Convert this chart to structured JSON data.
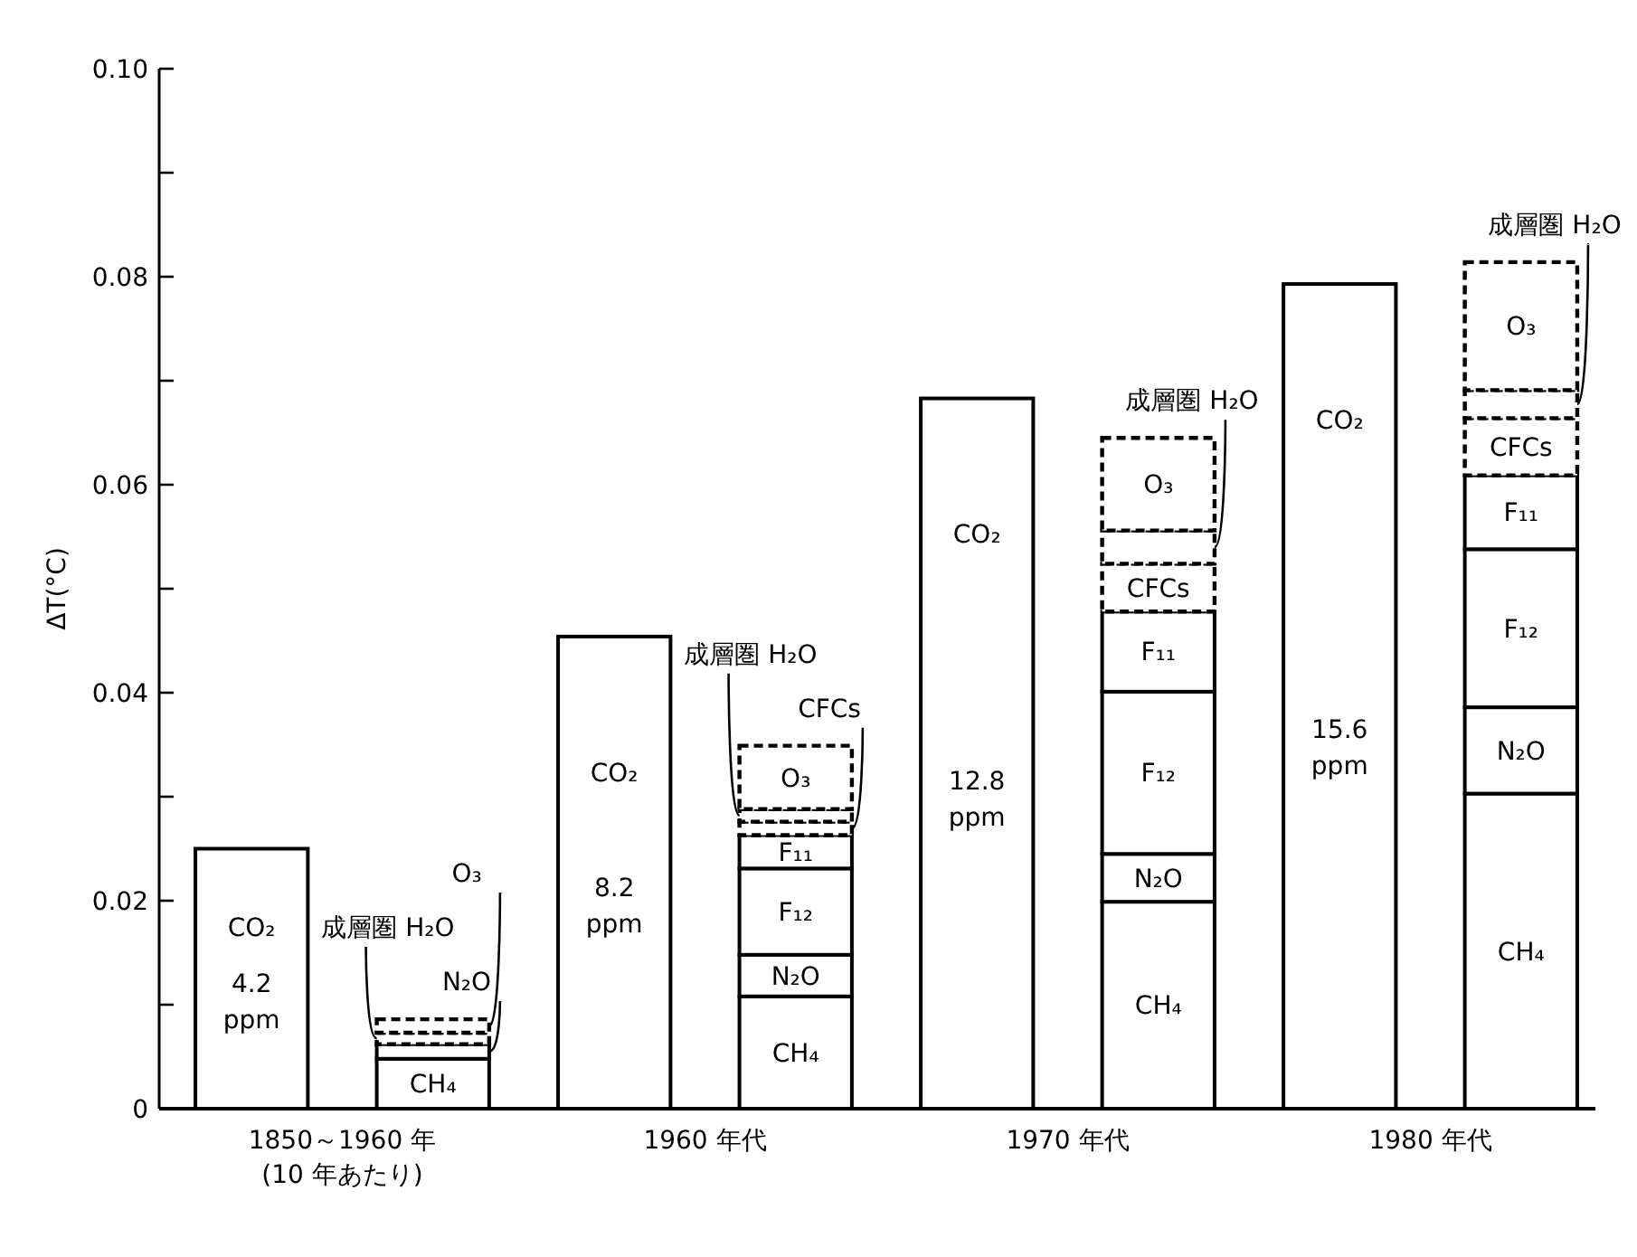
{
  "chart_data": {
    "type": "bar",
    "stacked": true,
    "ylabel": "ΔT(°C)",
    "categories": [
      "1850～1960 年\n(10 年あたり)",
      null,
      "1960 年代",
      null,
      "1970 年代",
      null,
      "1980 年代",
      null
    ],
    "ylim": [
      0,
      0.1
    ],
    "yticks": [
      0,
      {
        "value": 0.01,
        "label": null
      },
      0.02,
      {
        "value": 0.03,
        "label": null
      },
      0.04,
      {
        "value": 0.05,
        "label": null
      },
      0.06,
      {
        "value": 0.07,
        "label": null
      },
      0.08,
      {
        "value": 0.09,
        "label": null
      },
      {
        "value": 0.1,
        "label": "0.10"
      }
    ],
    "grid": false,
    "series": [
      {
        "name": "CO₂",
        "color": "#ffffff",
        "line_style": "solid",
        "values": [
          0.025,
          null,
          0.0454,
          null,
          0.0683,
          null,
          0.0793,
          null
        ]
      },
      {
        "name": "CH₄",
        "color": "#ffffff",
        "line_style": "solid",
        "values": [
          null,
          0.0048,
          null,
          0.0108,
          null,
          0.0199,
          null,
          0.0303
        ]
      },
      {
        "name": "N₂O",
        "color": "#ffffff",
        "line_style": "solid",
        "values": [
          null,
          0.0014,
          null,
          0.004,
          null,
          0.0046,
          null,
          0.0083
        ]
      },
      {
        "name": "F₁₂",
        "color": "#ffffff",
        "line_style": "solid",
        "values": [
          null,
          null,
          null,
          0.0083,
          null,
          0.0156,
          null,
          0.0152
        ]
      },
      {
        "name": "F₁₁",
        "color": "#ffffff",
        "line_style": "solid",
        "values": [
          null,
          null,
          null,
          0.0032,
          null,
          0.0077,
          null,
          0.0071
        ]
      },
      {
        "name": "CFCs",
        "color": "#ffffff",
        "line_style": "dashed",
        "values": [
          null,
          null,
          null,
          0.0013,
          null,
          0.0046,
          null,
          0.0055
        ]
      },
      {
        "name": "成層圏 H₂O",
        "color": "#ffffff",
        "line_style": "dashed",
        "values": [
          null,
          0.0011,
          null,
          0.0012,
          null,
          0.0032,
          null,
          0.0027
        ]
      },
      {
        "name": "O₃",
        "color": "#ffffff",
        "line_style": "dashed",
        "values": [
          null,
          0.0013,
          null,
          0.0061,
          null,
          0.0089,
          null,
          0.0123
        ]
      }
    ],
    "annotations": [
      "4.2\nppm",
      "8.2\nppm",
      "12.8\nppm",
      "15.6\nppm"
    ]
  }
}
